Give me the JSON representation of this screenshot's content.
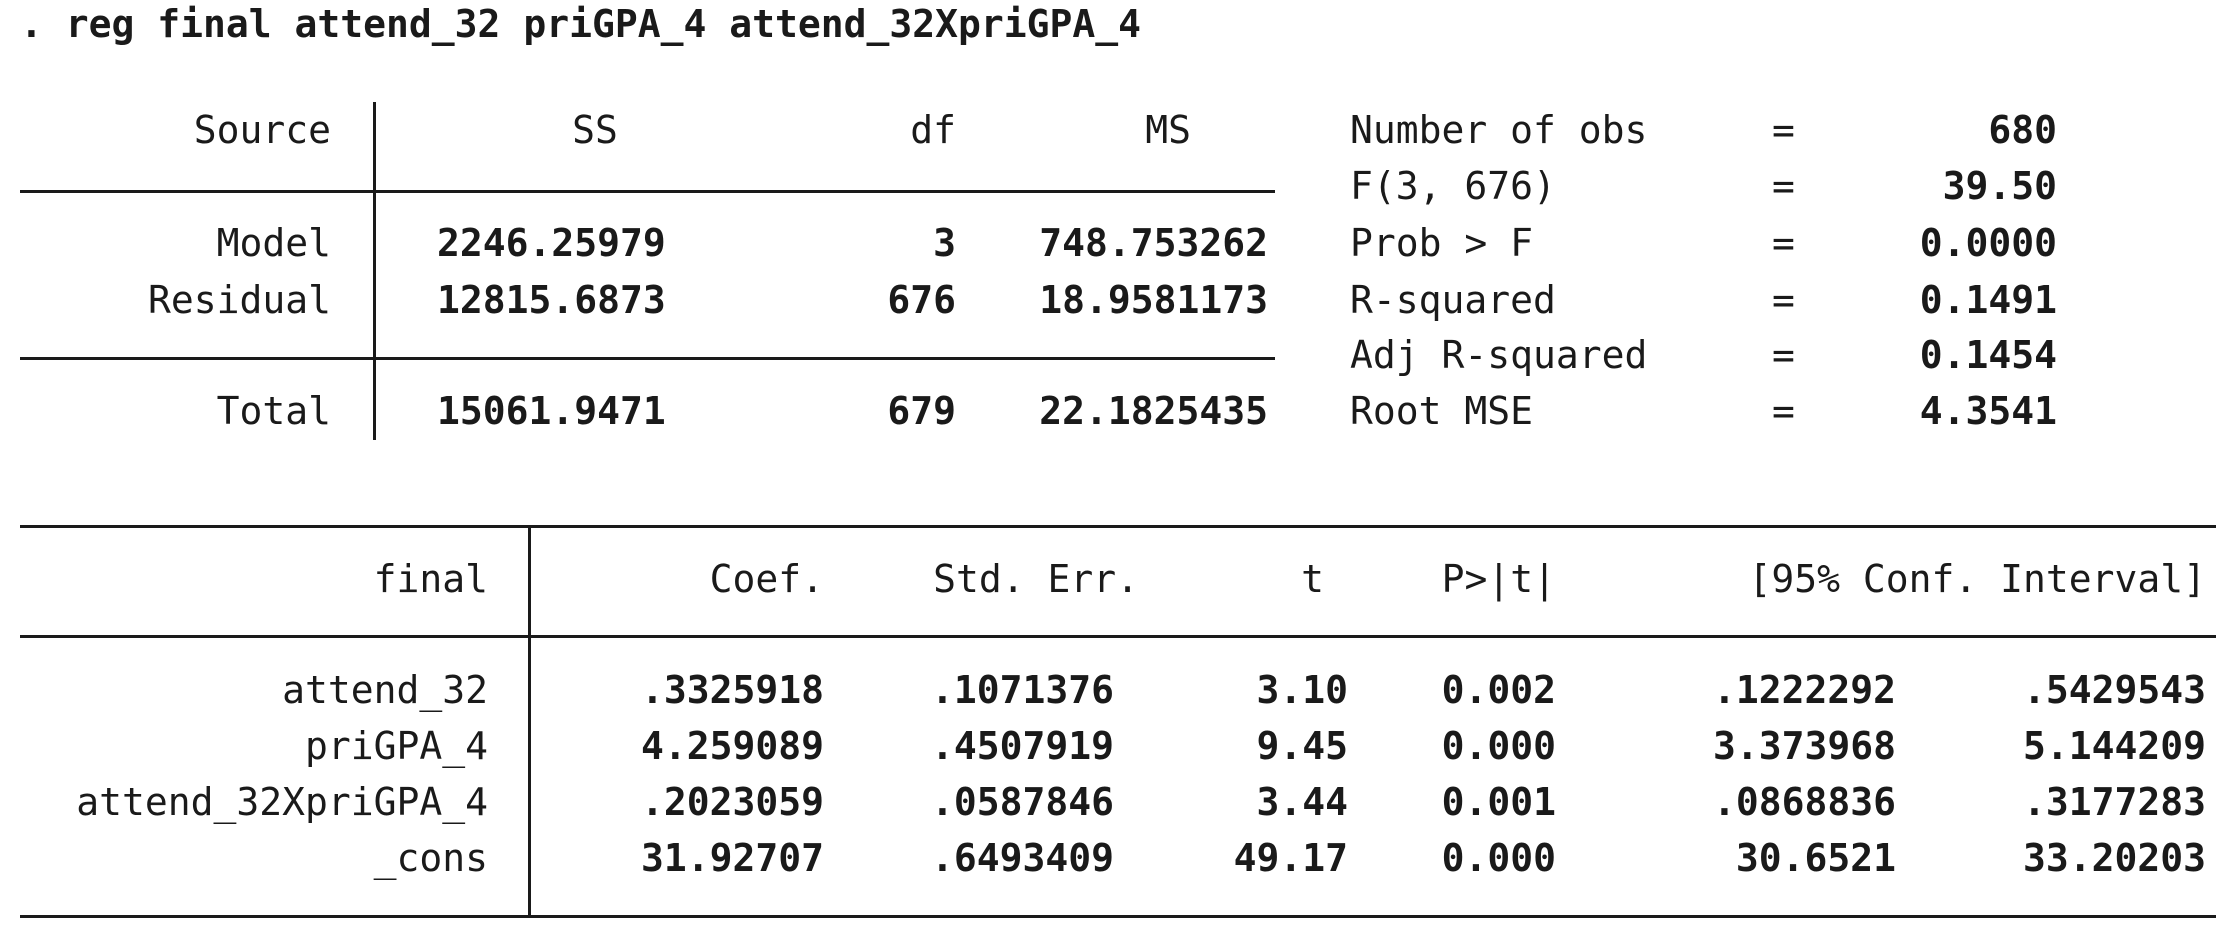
{
  "command": ". reg final attend_32 priGPA_4 attend_32XpriGPA_4",
  "anova": {
    "headers": {
      "source": "Source",
      "ss": "SS",
      "df": "df",
      "ms": "MS"
    },
    "rows": [
      {
        "source": "Model",
        "ss": "2246.25979",
        "df": "3",
        "ms": "748.753262"
      },
      {
        "source": "Residual",
        "ss": "12815.6873",
        "df": "676",
        "ms": "18.9581173"
      }
    ],
    "total": {
      "source": "Total",
      "ss": "15061.9471",
      "df": "679",
      "ms": "22.1825435"
    }
  },
  "stats": [
    {
      "label": "Number of obs",
      "eq": "=",
      "value": "680"
    },
    {
      "label": "F(3, 676)",
      "eq": "=",
      "value": "39.50"
    },
    {
      "label": "Prob > F",
      "eq": "=",
      "value": "0.0000"
    },
    {
      "label": "R-squared",
      "eq": "=",
      "value": "0.1491"
    },
    {
      "label": "Adj R-squared",
      "eq": "=",
      "value": "0.1454"
    },
    {
      "label": "Root MSE",
      "eq": "=",
      "value": "4.3541"
    }
  ],
  "coef": {
    "headers": {
      "depvar": "final",
      "coef": "Coef.",
      "se": "Std. Err.",
      "t": "t",
      "p": "P>|t|",
      "ci": "[95% Conf. Interval]"
    },
    "rows": [
      {
        "var": "attend_32",
        "coef": ".3325918",
        "se": ".1071376",
        "t": "3.10",
        "p": "0.002",
        "lo": ".1222292",
        "hi": ".5429543"
      },
      {
        "var": "priGPA_4",
        "coef": "4.259089",
        "se": ".4507919",
        "t": "9.45",
        "p": "0.000",
        "lo": "3.373968",
        "hi": "5.144209"
      },
      {
        "var": "attend_32XpriGPA_4",
        "coef": ".2023059",
        "se": ".0587846",
        "t": "3.44",
        "p": "0.001",
        "lo": ".0868836",
        "hi": ".3177283"
      },
      {
        "var": "_cons",
        "coef": "31.92707",
        "se": ".6493409",
        "t": "49.17",
        "p": "0.000",
        "lo": "30.6521",
        "hi": "33.20203"
      }
    ]
  }
}
